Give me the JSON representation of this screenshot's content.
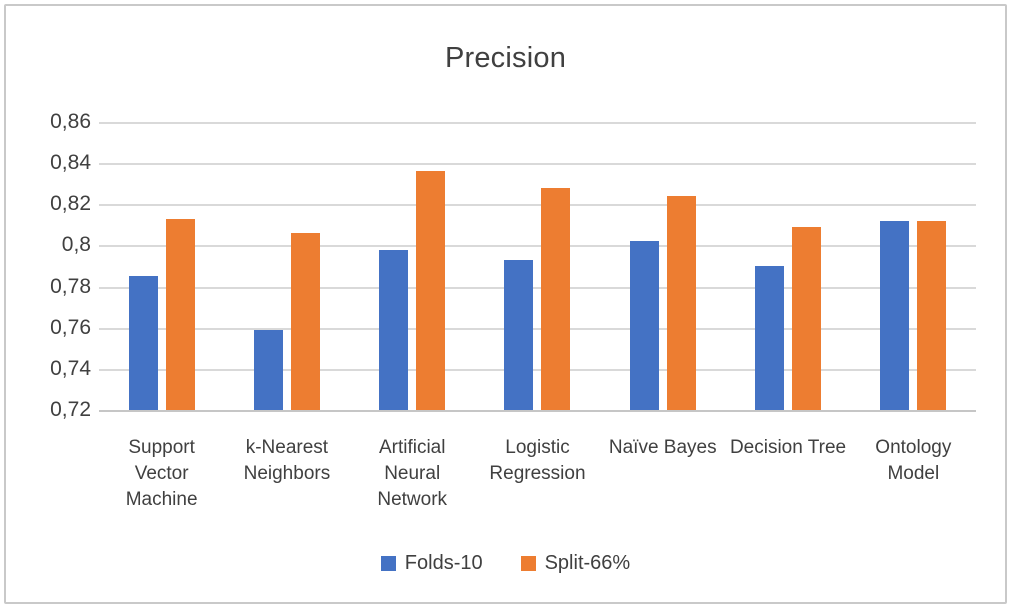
{
  "chart_data": {
    "type": "bar",
    "title": "Precision",
    "categories": [
      "Support Vector Machine",
      "k-Nearest Neighbors",
      "Artificial Neural Network",
      "Logistic Regression",
      "Naïve Bayes",
      "Decision Tree",
      "Ontology Model"
    ],
    "series": [
      {
        "name": "Folds-10",
        "color": "#4472C4",
        "values": [
          0.785,
          0.759,
          0.798,
          0.793,
          0.802,
          0.79,
          0.812
        ]
      },
      {
        "name": "Split-66%",
        "color": "#ED7D31",
        "values": [
          0.813,
          0.806,
          0.836,
          0.828,
          0.824,
          0.809,
          0.812
        ]
      }
    ],
    "xlabel": "",
    "ylabel": "",
    "ylim": [
      0.72,
      0.86
    ],
    "y_ticks": [
      0.86,
      0.84,
      0.82,
      0.8,
      0.78,
      0.76,
      0.74,
      0.72
    ],
    "y_tick_labels": [
      "0,86",
      "0,84",
      "0,82",
      "0,8",
      "0,78",
      "0,76",
      "0,74",
      "0,72"
    ],
    "decimal_separator": ",",
    "grid": true,
    "legend_position": "bottom"
  },
  "colors": {
    "gridline": "#d9d9d9",
    "axis_line": "#c6c6c6",
    "text": "#404040",
    "frame_border": "#c9c9c9",
    "series_blue": "#4472C4",
    "series_orange": "#ED7D31"
  }
}
